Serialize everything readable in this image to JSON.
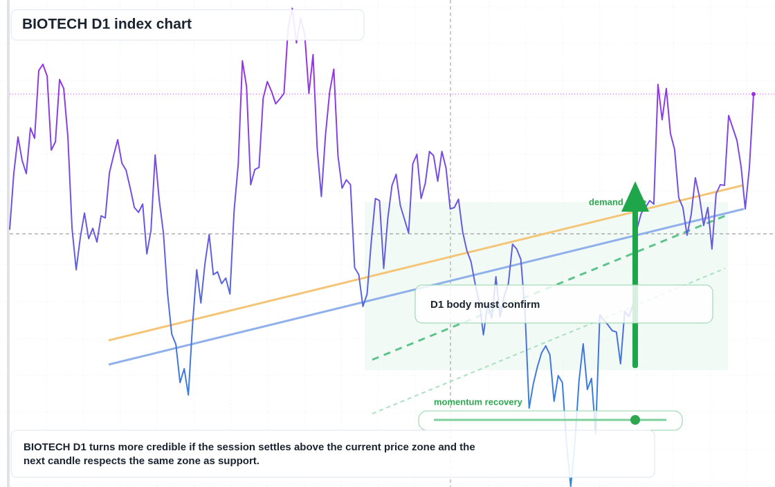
{
  "chart_data": {
    "type": "line",
    "title": "BIOTECH D1 index chart",
    "colors": [
      "#9b2fe6",
      "#2a88de"
    ],
    "values": [
      372,
      454,
      506,
      472,
      453,
      519,
      504,
      602,
      611,
      594,
      487,
      499,
      589,
      576,
      506,
      374,
      314,
      361,
      396,
      359,
      374,
      354,
      392,
      389,
      454,
      479,
      502,
      468,
      458,
      432,
      404,
      397,
      409,
      337,
      371,
      480,
      414,
      367,
      279,
      221,
      206,
      151,
      171,
      133,
      234,
      314,
      266,
      324,
      365,
      307,
      311,
      294,
      302,
      279,
      399,
      467,
      616,
      579,
      437,
      459,
      462,
      562,
      586,
      572,
      554,
      561,
      569,
      664,
      692,
      642,
      678,
      654,
      569,
      625,
      489,
      420,
      509,
      571,
      604,
      479,
      432,
      444,
      437,
      317,
      307,
      261,
      279,
      354,
      417,
      414,
      316,
      389,
      436,
      452,
      407,
      387,
      367,
      467,
      481,
      417,
      439,
      485,
      479,
      442,
      485,
      461,
      402,
      404,
      416,
      369,
      342,
      326,
      294,
      267,
      220,
      264,
      244,
      304,
      246,
      276,
      294,
      351,
      344,
      329,
      254,
      114,
      149,
      174,
      194,
      204,
      191,
      124,
      161,
      151,
      64,
      1,
      64,
      154,
      207,
      141,
      157,
      77,
      249,
      241,
      234,
      226,
      224,
      178,
      254,
      246,
      264,
      374,
      396,
      404,
      414,
      409,
      582,
      531,
      576,
      511,
      488,
      418,
      404,
      364,
      394,
      447,
      419,
      378,
      404,
      344,
      424,
      437,
      436,
      537,
      519,
      501,
      463,
      402,
      462,
      568
    ],
    "annotations": {
      "demand": "demand zone",
      "confirm": "D1 body must confirm",
      "momentum": "momentum recovery",
      "caption": "BIOTECH D1 turns more credible if the session settles above the current price zone and the next candle respects the same zone as support."
    }
  }
}
